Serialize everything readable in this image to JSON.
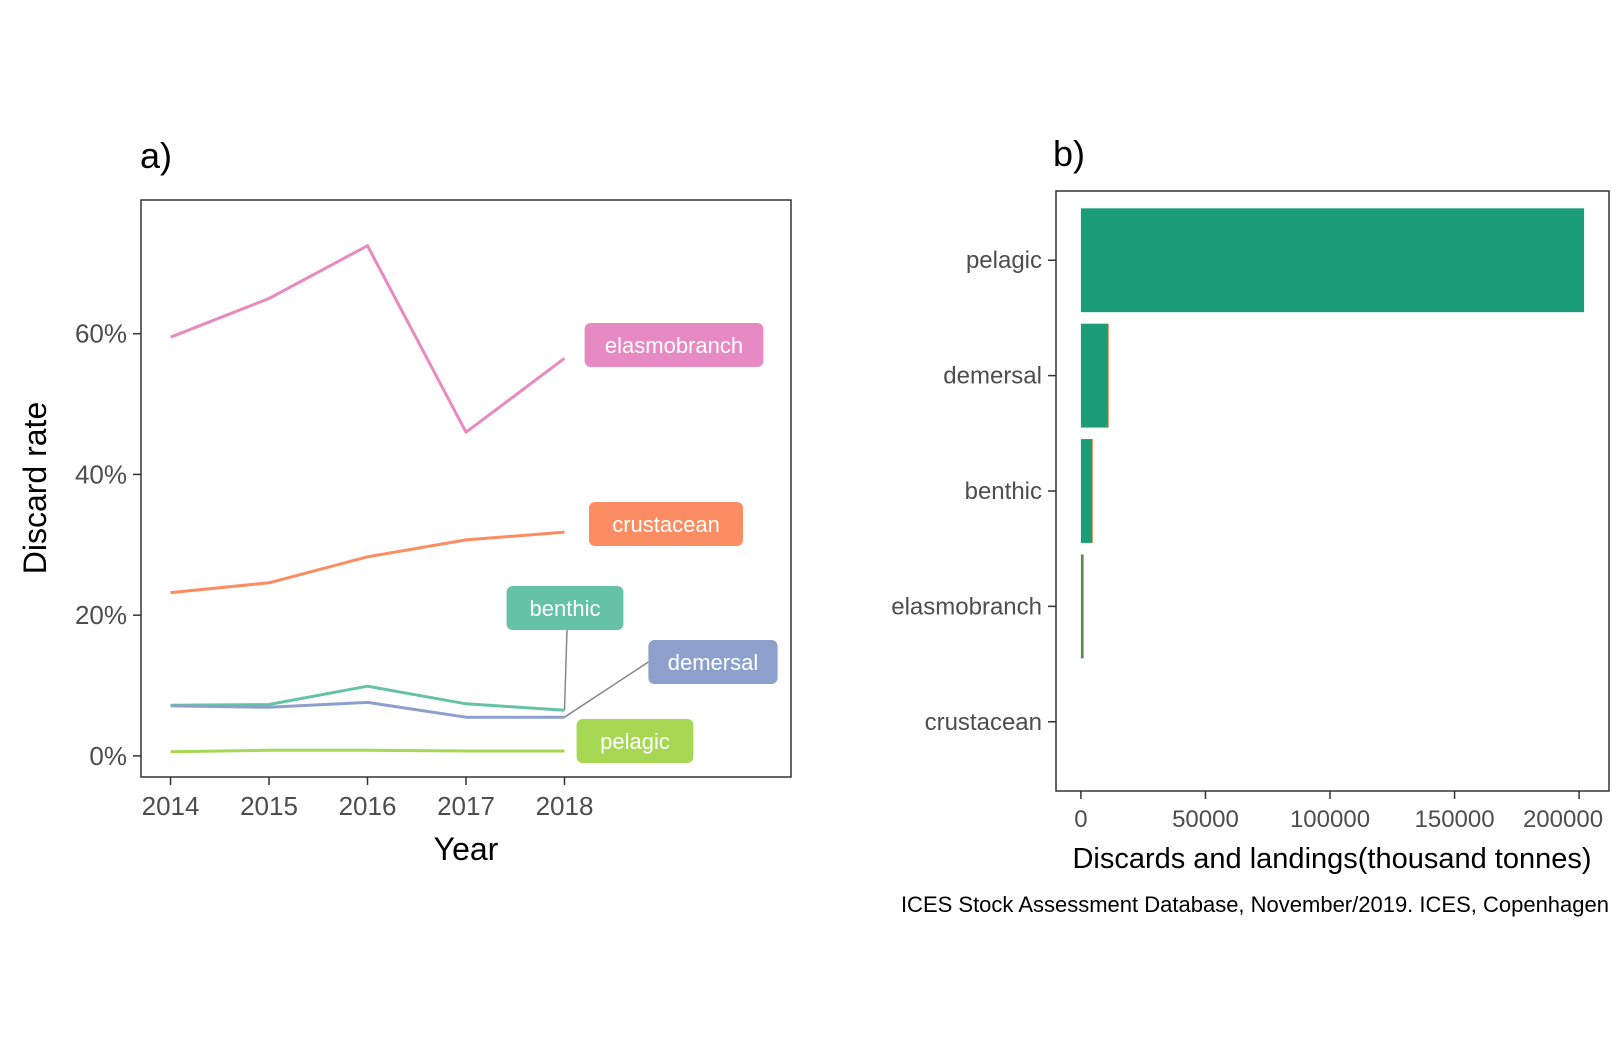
{
  "chart_data": [
    {
      "panel_label": "a)",
      "type": "line",
      "xlabel": "Year",
      "ylabel": "Discard rate",
      "x": [
        2014,
        2015,
        2016,
        2017,
        2018
      ],
      "xlim": [
        2013.7,
        2020.3
      ],
      "ylim": [
        -0.03,
        0.79
      ],
      "yticks": [
        0,
        0.2,
        0.4,
        0.6
      ],
      "ytick_labels": [
        "0%",
        "20%",
        "40%",
        "60%"
      ],
      "grid": false,
      "legend": "direct labels",
      "series": [
        {
          "name": "elasmobranch",
          "color": "#E78AC3",
          "values": [
            0.595,
            0.65,
            0.725,
            0.46,
            0.565
          ]
        },
        {
          "name": "crustacean",
          "color": "#FC8D62",
          "values": [
            0.232,
            0.246,
            0.283,
            0.307,
            0.318
          ]
        },
        {
          "name": "benthic",
          "color": "#66C2A5",
          "values": [
            0.072,
            0.073,
            0.099,
            0.074,
            0.065
          ]
        },
        {
          "name": "demersal",
          "color": "#8DA0CB",
          "values": [
            0.071,
            0.069,
            0.076,
            0.055,
            0.055
          ]
        },
        {
          "name": "pelagic",
          "color": "#A6D854",
          "values": [
            0.006,
            0.008,
            0.008,
            0.007,
            0.007
          ]
        }
      ]
    },
    {
      "panel_label": "b)",
      "type": "bar",
      "orientation": "horizontal",
      "xlabel": "Discards and landings(thousand tonnes)",
      "ylabel": "",
      "categories": [
        "pelagic",
        "demersal",
        "benthic",
        "elasmobranch",
        "crustacean"
      ],
      "values": [
        202000,
        11000,
        4500,
        800,
        0
      ],
      "discard_values": [
        0,
        300,
        200,
        100,
        0
      ],
      "xlim": [
        -10000,
        212000
      ],
      "xticks": [
        0,
        50000,
        100000,
        150000,
        200000
      ],
      "bar_color": "#1B9E77",
      "discard_color": "#D95F02",
      "grid": false
    }
  ],
  "caption": "ICES Stock Assessment Database, November/2019. ICES, Copenhagen"
}
